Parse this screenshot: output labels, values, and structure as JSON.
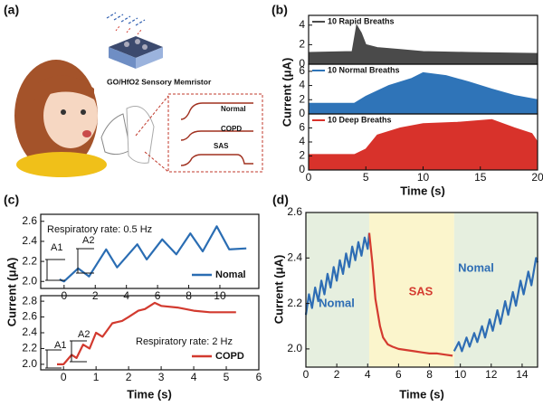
{
  "illustration": {
    "panel": "(a)",
    "device": "GO/HfO2 Sensory Memristor",
    "curve_labels": [
      "Normal",
      "COPD",
      "SAS"
    ]
  },
  "chart_data": [
    {
      "type": "area",
      "panel": "(b)",
      "xlim": [
        0,
        20
      ],
      "ylim": [
        0,
        5
      ],
      "yticks": [
        0,
        2,
        4
      ],
      "series": [
        {
          "name": "10 Rapid Breaths",
          "color": "#4a4a4a",
          "x": [
            0,
            3.8,
            4.2,
            4.6,
            5,
            6,
            8,
            10,
            14,
            20
          ],
          "values": [
            1.2,
            1.3,
            4.0,
            3.2,
            2.0,
            1.7,
            1.5,
            1.3,
            1.2,
            1.1
          ]
        }
      ]
    },
    {
      "type": "area",
      "ylabel": "Current (μA)",
      "xlim": [
        0,
        20
      ],
      "ylim": [
        0,
        7
      ],
      "yticks": [
        0,
        2,
        4,
        6
      ],
      "series": [
        {
          "name": "10 Normal Breaths",
          "color": "#2f74b8",
          "x": [
            0,
            4,
            5,
            7,
            9,
            10,
            12,
            14,
            16,
            18,
            20
          ],
          "values": [
            1.5,
            1.5,
            2.5,
            4.0,
            5.0,
            5.8,
            5.4,
            4.5,
            3.5,
            2.6,
            2.0
          ]
        }
      ]
    },
    {
      "type": "area",
      "xlabel": "Time (s)",
      "xlim": [
        0,
        20
      ],
      "xticks": [
        0,
        5,
        10,
        15,
        20
      ],
      "ylim": [
        0,
        8
      ],
      "yticks": [
        0,
        2,
        4,
        6
      ],
      "series": [
        {
          "name": "10 Deep Breaths",
          "color": "#d8322b",
          "x": [
            0,
            4,
            5,
            6,
            8,
            10,
            13,
            16,
            18,
            19.5,
            20
          ],
          "values": [
            2.2,
            2.2,
            3.0,
            5.0,
            6.0,
            6.6,
            6.8,
            7.2,
            6.0,
            5.2,
            4.0
          ]
        }
      ]
    },
    {
      "type": "line",
      "panel": "(c)",
      "ylabel": "Current (μA)",
      "annotations": [
        "Respiratory rate: 0.5 Hz",
        "A1",
        "A2"
      ],
      "xlim": [
        -1.5,
        12.5
      ],
      "xticks": [
        0,
        2,
        4,
        6,
        8,
        10
      ],
      "ylim": [
        1.93,
        2.67
      ],
      "yticks": [
        {
          "value": 2,
          "label": "2.0"
        },
        2.2,
        2.4,
        2.6
      ],
      "series": [
        {
          "name": "Nomal",
          "color": "#2a6db3",
          "x": [
            -0.3,
            0,
            0.9,
            1.6,
            2.7,
            3.4,
            4.7,
            5.3,
            6.3,
            7.2,
            8.1,
            8.9,
            9.8,
            10.6,
            11.7
          ],
          "values": [
            2.02,
            2.0,
            2.13,
            2.05,
            2.32,
            2.14,
            2.37,
            2.22,
            2.42,
            2.27,
            2.48,
            2.3,
            2.55,
            2.32,
            2.33
          ]
        }
      ]
    },
    {
      "type": "line",
      "xlabel": "Time (s)",
      "annotations": [
        "Respiratory rate: 2 Hz",
        "A1",
        "A2"
      ],
      "xlim": [
        -0.7,
        6
      ],
      "xticks": [
        0,
        1,
        2,
        3,
        4,
        5,
        6
      ],
      "ylim": [
        1.93,
        2.87
      ],
      "yticks": [
        {
          "value": 2,
          "label": "2.0"
        },
        2.2,
        2.4,
        2.6,
        2.8
      ],
      "series": [
        {
          "name": "COPD",
          "color": "#d23a2f",
          "x": [
            -0.2,
            0,
            0.25,
            0.4,
            0.6,
            0.8,
            1.0,
            1.2,
            1.5,
            1.8,
            2.0,
            2.3,
            2.5,
            2.8,
            3.0,
            3.5,
            4.0,
            4.5,
            5.3
          ],
          "values": [
            2.0,
            2.0,
            2.12,
            2.08,
            2.25,
            2.2,
            2.4,
            2.35,
            2.52,
            2.55,
            2.6,
            2.68,
            2.7,
            2.78,
            2.74,
            2.72,
            2.68,
            2.66,
            2.66
          ]
        }
      ]
    },
    {
      "type": "line",
      "panel": "(d)",
      "xlabel": "Time (s)",
      "ylabel": "Current (μA)",
      "xlim": [
        0,
        15
      ],
      "xticks": [
        0,
        2,
        4,
        6,
        8,
        10,
        12,
        14
      ],
      "ylim": [
        1.92,
        2.6
      ],
      "yticks": [
        {
          "value": 2,
          "label": "2.0"
        },
        2.2,
        2.4,
        2.6
      ],
      "shaded_regions": [
        {
          "xlim": [
            0,
            4.1
          ],
          "color": "#e6efdf"
        },
        {
          "xlim": [
            4.1,
            9.6
          ],
          "color": "#fbf5cc"
        },
        {
          "xlim": [
            9.6,
            15
          ],
          "color": "#e6efdf"
        }
      ],
      "series": [
        {
          "name": "Nomal",
          "color": "#2e6db4",
          "x": [
            0,
            0.2,
            0.4,
            0.6,
            0.8,
            1.0,
            1.2,
            1.4,
            1.6,
            1.8,
            2.0,
            2.2,
            2.4,
            2.6,
            2.8,
            3.0,
            3.2,
            3.4,
            3.6,
            3.8,
            4.0,
            4.1
          ],
          "values": [
            2.15,
            2.24,
            2.18,
            2.27,
            2.21,
            2.3,
            2.24,
            2.33,
            2.27,
            2.36,
            2.3,
            2.39,
            2.33,
            2.42,
            2.36,
            2.45,
            2.39,
            2.47,
            2.41,
            2.49,
            2.44,
            2.51
          ]
        },
        {
          "name": "SAS",
          "color": "#d43b30",
          "x": [
            4.1,
            4.3,
            4.5,
            4.8,
            5.0,
            5.3,
            5.6,
            6,
            6.5,
            7,
            7.5,
            8,
            8.5,
            9,
            9.5
          ],
          "values": [
            2.51,
            2.38,
            2.22,
            2.1,
            2.05,
            2.02,
            2.01,
            2.0,
            1.995,
            1.99,
            1.985,
            1.98,
            1.98,
            1.975,
            1.97
          ]
        },
        {
          "name": "Nomal",
          "color": "#2e6db4",
          "x": [
            9.6,
            9.9,
            10.1,
            10.4,
            10.6,
            10.9,
            11.1,
            11.4,
            11.6,
            11.9,
            12.1,
            12.4,
            12.6,
            12.9,
            13.1,
            13.4,
            13.6,
            13.9,
            14.1,
            14.4,
            14.6,
            14.9,
            15
          ],
          "values": [
            1.99,
            2.03,
            1.99,
            2.05,
            2.01,
            2.07,
            2.03,
            2.1,
            2.05,
            2.13,
            2.08,
            2.17,
            2.11,
            2.21,
            2.15,
            2.25,
            2.19,
            2.3,
            2.24,
            2.34,
            2.28,
            2.4,
            2.38
          ]
        }
      ]
    }
  ]
}
